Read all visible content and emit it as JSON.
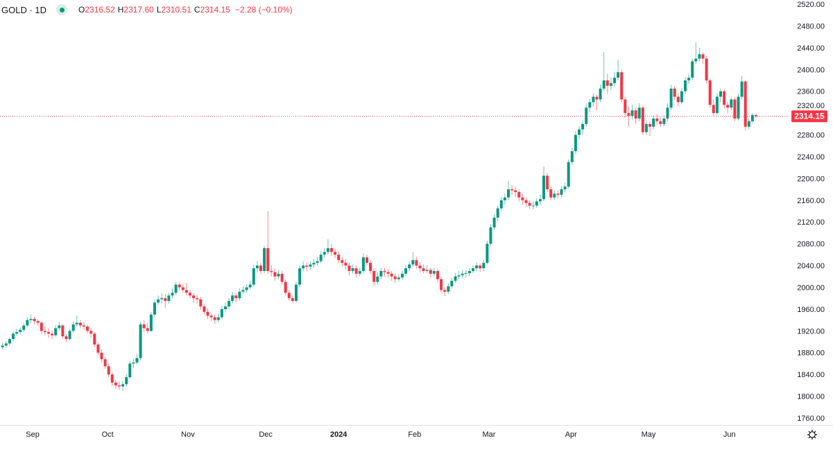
{
  "legend": {
    "symbol": "GOLD · 1D",
    "status_icon": "market-open-dot",
    "open_label": "O",
    "open": "2316.52",
    "high_label": "H",
    "high": "2317.60",
    "low_label": "L",
    "low": "2310.51",
    "close_label": "C",
    "close": "2314.15",
    "change": "−2.28 (−0.10%)"
  },
  "price_label": "2314.15",
  "colors": {
    "up": "#089981",
    "down": "#F23645",
    "price_line": "#F23645"
  },
  "settings_icon": "gear-icon",
  "chart_data": {
    "type": "candlestick",
    "symbol": "GOLD",
    "interval": "1D",
    "ylim": [
      1760,
      2520
    ],
    "y_ticks": [
      "1760.00",
      "1800.00",
      "1840.00",
      "1880.00",
      "1920.00",
      "1960.00",
      "2000.00",
      "2040.00",
      "2080.00",
      "2120.00",
      "2160.00",
      "2200.00",
      "2240.00",
      "2280.00",
      "2320.00",
      "2360.00",
      "2400.00",
      "2440.00",
      "2480.00",
      "2520.00"
    ],
    "x_ticks": [
      "Sep",
      "Oct",
      "Nov",
      "Dec",
      "2024",
      "Feb",
      "Mar",
      "Apr",
      "May",
      "Jun"
    ],
    "last_price": 2314.15,
    "ohlc": [
      [
        1890,
        1898,
        1886,
        1893
      ],
      [
        1893,
        1901,
        1889,
        1897
      ],
      [
        1897,
        1908,
        1893,
        1905
      ],
      [
        1905,
        1919,
        1902,
        1915
      ],
      [
        1915,
        1924,
        1911,
        1918
      ],
      [
        1918,
        1926,
        1913,
        1922
      ],
      [
        1922,
        1934,
        1918,
        1930
      ],
      [
        1930,
        1945,
        1927,
        1940
      ],
      [
        1940,
        1950,
        1934,
        1942
      ],
      [
        1942,
        1946,
        1932,
        1938
      ],
      [
        1938,
        1941,
        1929,
        1935
      ],
      [
        1935,
        1938,
        1915,
        1920
      ],
      [
        1920,
        1928,
        1912,
        1918
      ],
      [
        1918,
        1925,
        1908,
        1915
      ],
      [
        1915,
        1920,
        1905,
        1912
      ],
      [
        1912,
        1930,
        1909,
        1925
      ],
      [
        1925,
        1937,
        1921,
        1930
      ],
      [
        1930,
        1932,
        1906,
        1910
      ],
      [
        1910,
        1914,
        1900,
        1905
      ],
      [
        1905,
        1924,
        1902,
        1920
      ],
      [
        1920,
        1938,
        1917,
        1932
      ],
      [
        1932,
        1948,
        1928,
        1935
      ],
      [
        1935,
        1940,
        1925,
        1930
      ],
      [
        1930,
        1936,
        1922,
        1928
      ],
      [
        1928,
        1932,
        1915,
        1920
      ],
      [
        1920,
        1925,
        1908,
        1915
      ],
      [
        1915,
        1918,
        1890,
        1895
      ],
      [
        1895,
        1899,
        1875,
        1880
      ],
      [
        1880,
        1886,
        1862,
        1868
      ],
      [
        1868,
        1873,
        1850,
        1855
      ],
      [
        1855,
        1860,
        1835,
        1840
      ],
      [
        1840,
        1845,
        1818,
        1825
      ],
      [
        1825,
        1830,
        1814,
        1820
      ],
      [
        1820,
        1827,
        1812,
        1818
      ],
      [
        1818,
        1828,
        1810,
        1822
      ],
      [
        1822,
        1840,
        1818,
        1835
      ],
      [
        1835,
        1865,
        1832,
        1860
      ],
      [
        1860,
        1868,
        1852,
        1862
      ],
      [
        1862,
        1878,
        1858,
        1870
      ],
      [
        1870,
        1937,
        1866,
        1932
      ],
      [
        1932,
        1940,
        1918,
        1925
      ],
      [
        1925,
        1935,
        1915,
        1920
      ],
      [
        1920,
        1955,
        1917,
        1950
      ],
      [
        1950,
        1978,
        1946,
        1972
      ],
      [
        1972,
        1985,
        1968,
        1978
      ],
      [
        1978,
        1990,
        1970,
        1980
      ],
      [
        1980,
        1988,
        1962,
        1975
      ],
      [
        1975,
        1990,
        1970,
        1985
      ],
      [
        1985,
        1998,
        1980,
        1990
      ],
      [
        1990,
        2010,
        1986,
        2005
      ],
      [
        2005,
        2009,
        1995,
        2000
      ],
      [
        2000,
        2006,
        1990,
        1995
      ],
      [
        1995,
        2008,
        1985,
        1990
      ],
      [
        1990,
        1996,
        1980,
        1985
      ],
      [
        1985,
        1990,
        1972,
        1980
      ],
      [
        1980,
        1986,
        1970,
        1978
      ],
      [
        1978,
        1982,
        1958,
        1965
      ],
      [
        1965,
        1970,
        1950,
        1955
      ],
      [
        1955,
        1962,
        1942,
        1948
      ],
      [
        1948,
        1952,
        1938,
        1945
      ],
      [
        1945,
        1950,
        1933,
        1940
      ],
      [
        1940,
        1952,
        1936,
        1945
      ],
      [
        1945,
        1966,
        1942,
        1960
      ],
      [
        1960,
        1972,
        1955,
        1965
      ],
      [
        1965,
        1980,
        1960,
        1975
      ],
      [
        1975,
        1992,
        1970,
        1985
      ],
      [
        1985,
        1990,
        1972,
        1980
      ],
      [
        1980,
        1998,
        1976,
        1992
      ],
      [
        1992,
        2002,
        1988,
        1995
      ],
      [
        1995,
        2006,
        1990,
        2000
      ],
      [
        2000,
        2012,
        1996,
        2005
      ],
      [
        2005,
        2042,
        2002,
        2035
      ],
      [
        2035,
        2048,
        2028,
        2040
      ],
      [
        2040,
        2045,
        2024,
        2030
      ],
      [
        2030,
        2076,
        2026,
        2072
      ],
      [
        2072,
        2140,
        2025,
        2030
      ],
      [
        2030,
        2040,
        2020,
        2028
      ],
      [
        2028,
        2035,
        2012,
        2020
      ],
      [
        2020,
        2032,
        2015,
        2025
      ],
      [
        2025,
        2030,
        2005,
        2010
      ],
      [
        2010,
        2014,
        1985,
        1990
      ],
      [
        1990,
        1995,
        1975,
        1980
      ],
      [
        1980,
        1985,
        1972,
        1975
      ],
      [
        1975,
        2010,
        1972,
        2005
      ],
      [
        2005,
        2040,
        2000,
        2035
      ],
      [
        2035,
        2048,
        2030,
        2040
      ],
      [
        2040,
        2046,
        2030,
        2038
      ],
      [
        2038,
        2048,
        2032,
        2042
      ],
      [
        2042,
        2052,
        2036,
        2045
      ],
      [
        2045,
        2055,
        2040,
        2048
      ],
      [
        2048,
        2066,
        2044,
        2060
      ],
      [
        2060,
        2072,
        2055,
        2065
      ],
      [
        2065,
        2088,
        2060,
        2072
      ],
      [
        2072,
        2080,
        2058,
        2065
      ],
      [
        2065,
        2070,
        2054,
        2060
      ],
      [
        2060,
        2066,
        2044,
        2050
      ],
      [
        2050,
        2056,
        2038,
        2045
      ],
      [
        2045,
        2052,
        2032,
        2040
      ],
      [
        2040,
        2046,
        2022,
        2030
      ],
      [
        2030,
        2042,
        2025,
        2035
      ],
      [
        2035,
        2040,
        2018,
        2025
      ],
      [
        2025,
        2036,
        2020,
        2030
      ],
      [
        2030,
        2062,
        2026,
        2055
      ],
      [
        2055,
        2060,
        2040,
        2045
      ],
      [
        2045,
        2050,
        2025,
        2030
      ],
      [
        2030,
        2035,
        2002,
        2010
      ],
      [
        2010,
        2028,
        2005,
        2020
      ],
      [
        2020,
        2035,
        2015,
        2030
      ],
      [
        2030,
        2036,
        2020,
        2028
      ],
      [
        2028,
        2034,
        2018,
        2025
      ],
      [
        2025,
        2030,
        2012,
        2020
      ],
      [
        2020,
        2026,
        2008,
        2015
      ],
      [
        2015,
        2024,
        2010,
        2018
      ],
      [
        2018,
        2030,
        2014,
        2025
      ],
      [
        2025,
        2040,
        2020,
        2035
      ],
      [
        2035,
        2048,
        2030,
        2042
      ],
      [
        2042,
        2065,
        2038,
        2050
      ],
      [
        2050,
        2056,
        2035,
        2040
      ],
      [
        2040,
        2046,
        2028,
        2035
      ],
      [
        2035,
        2042,
        2025,
        2030
      ],
      [
        2030,
        2040,
        2026,
        2032
      ],
      [
        2032,
        2036,
        2018,
        2025
      ],
      [
        2025,
        2036,
        2020,
        2030
      ],
      [
        2030,
        2034,
        2010,
        2015
      ],
      [
        2015,
        2020,
        1990,
        1995
      ],
      [
        1995,
        2000,
        1984,
        1992
      ],
      [
        1992,
        2008,
        1988,
        2002
      ],
      [
        2002,
        2018,
        1998,
        2012
      ],
      [
        2012,
        2026,
        2008,
        2020
      ],
      [
        2020,
        2030,
        2015,
        2022
      ],
      [
        2022,
        2032,
        2016,
        2025
      ],
      [
        2025,
        2032,
        2018,
        2026
      ],
      [
        2026,
        2036,
        2020,
        2030
      ],
      [
        2030,
        2040,
        2026,
        2035
      ],
      [
        2035,
        2046,
        2030,
        2040
      ],
      [
        2040,
        2044,
        2028,
        2035
      ],
      [
        2035,
        2050,
        2030,
        2045
      ],
      [
        2045,
        2086,
        2042,
        2080
      ],
      [
        2080,
        2116,
        2076,
        2110
      ],
      [
        2110,
        2134,
        2105,
        2128
      ],
      [
        2128,
        2150,
        2122,
        2145
      ],
      [
        2145,
        2166,
        2140,
        2160
      ],
      [
        2160,
        2172,
        2152,
        2165
      ],
      [
        2165,
        2195,
        2160,
        2180
      ],
      [
        2180,
        2188,
        2170,
        2178
      ],
      [
        2178,
        2185,
        2165,
        2175
      ],
      [
        2175,
        2180,
        2158,
        2165
      ],
      [
        2165,
        2172,
        2152,
        2160
      ],
      [
        2160,
        2165,
        2148,
        2155
      ],
      [
        2155,
        2160,
        2144,
        2150
      ],
      [
        2150,
        2158,
        2143,
        2150
      ],
      [
        2150,
        2164,
        2146,
        2158
      ],
      [
        2158,
        2170,
        2152,
        2162
      ],
      [
        2162,
        2222,
        2158,
        2205
      ],
      [
        2205,
        2210,
        2175,
        2180
      ],
      [
        2180,
        2186,
        2160,
        2165
      ],
      [
        2165,
        2178,
        2160,
        2172
      ],
      [
        2172,
        2178,
        2164,
        2170
      ],
      [
        2170,
        2186,
        2166,
        2180
      ],
      [
        2180,
        2192,
        2175,
        2185
      ],
      [
        2185,
        2235,
        2182,
        2230
      ],
      [
        2230,
        2256,
        2225,
        2250
      ],
      [
        2250,
        2286,
        2245,
        2280
      ],
      [
        2280,
        2296,
        2272,
        2290
      ],
      [
        2290,
        2306,
        2280,
        2300
      ],
      [
        2300,
        2336,
        2295,
        2330
      ],
      [
        2330,
        2346,
        2322,
        2340
      ],
      [
        2340,
        2356,
        2332,
        2350
      ],
      [
        2350,
        2354,
        2325,
        2345
      ],
      [
        2345,
        2372,
        2340,
        2365
      ],
      [
        2365,
        2432,
        2360,
        2380
      ],
      [
        2380,
        2392,
        2355,
        2370
      ],
      [
        2370,
        2385,
        2362,
        2375
      ],
      [
        2375,
        2395,
        2368,
        2385
      ],
      [
        2385,
        2418,
        2380,
        2395
      ],
      [
        2395,
        2400,
        2340,
        2345
      ],
      [
        2345,
        2350,
        2312,
        2320
      ],
      [
        2320,
        2332,
        2295,
        2315
      ],
      [
        2315,
        2335,
        2308,
        2325
      ],
      [
        2325,
        2330,
        2300,
        2310
      ],
      [
        2310,
        2338,
        2305,
        2330
      ],
      [
        2330,
        2334,
        2280,
        2285
      ],
      [
        2285,
        2306,
        2280,
        2300
      ],
      [
        2300,
        2305,
        2278,
        2295
      ],
      [
        2295,
        2316,
        2290,
        2310
      ],
      [
        2310,
        2318,
        2298,
        2305
      ],
      [
        2305,
        2312,
        2295,
        2300
      ],
      [
        2300,
        2316,
        2296,
        2310
      ],
      [
        2310,
        2338,
        2305,
        2330
      ],
      [
        2330,
        2372,
        2325,
        2365
      ],
      [
        2365,
        2370,
        2345,
        2350
      ],
      [
        2350,
        2356,
        2332,
        2340
      ],
      [
        2340,
        2366,
        2336,
        2360
      ],
      [
        2360,
        2386,
        2355,
        2380
      ],
      [
        2380,
        2392,
        2374,
        2385
      ],
      [
        2385,
        2420,
        2380,
        2415
      ],
      [
        2415,
        2450,
        2410,
        2420
      ],
      [
        2420,
        2440,
        2415,
        2428
      ],
      [
        2428,
        2432,
        2410,
        2420
      ],
      [
        2420,
        2425,
        2375,
        2380
      ],
      [
        2380,
        2384,
        2330,
        2335
      ],
      [
        2335,
        2345,
        2315,
        2320
      ],
      [
        2320,
        2356,
        2316,
        2350
      ],
      [
        2350,
        2365,
        2340,
        2360
      ],
      [
        2360,
        2364,
        2328,
        2335
      ],
      [
        2335,
        2340,
        2320,
        2330
      ],
      [
        2330,
        2350,
        2325,
        2345
      ],
      [
        2345,
        2350,
        2305,
        2310
      ],
      [
        2310,
        2356,
        2306,
        2350
      ],
      [
        2350,
        2388,
        2345,
        2378
      ],
      [
        2378,
        2380,
        2288,
        2295
      ],
      [
        2295,
        2310,
        2290,
        2305
      ],
      [
        2305,
        2320,
        2302,
        2316.43
      ],
      [
        2316.52,
        2317.6,
        2310.51,
        2314.15
      ]
    ]
  }
}
